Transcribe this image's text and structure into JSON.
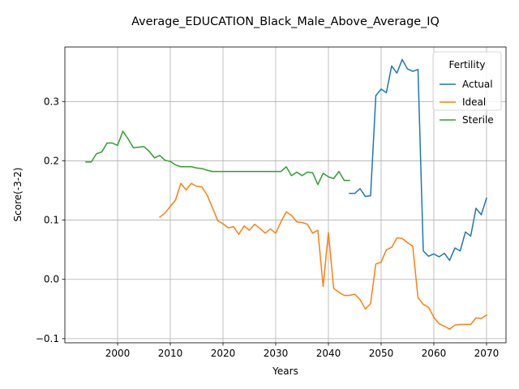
{
  "chart_data": {
    "type": "line",
    "title": "Average_EDUCATION_Black_Male_Above_Average_IQ",
    "xlabel": "Years",
    "ylabel": "Score(-3-2)",
    "xlim": [
      1990,
      2073.7
    ],
    "ylim": [
      -0.107,
      0.392
    ],
    "xticks": [
      2000,
      2010,
      2020,
      2030,
      2040,
      2050,
      2060,
      2070
    ],
    "yticks": [
      -0.1,
      0.0,
      0.1,
      0.2,
      0.3
    ],
    "ytick_labels": [
      "−0.1",
      "0.0",
      "0.1",
      "0.2",
      "0.3"
    ],
    "grid": true,
    "legend": {
      "title": "Fertility",
      "position": "top-right"
    },
    "series": [
      {
        "name": "Actual",
        "color": "#1f77b4",
        "x": [
          2044,
          2045,
          2046,
          2047,
          2048,
          2049,
          2050,
          2051,
          2052,
          2053,
          2054,
          2055,
          2056,
          2057,
          2058,
          2059,
          2060,
          2061,
          2062,
          2063,
          2064,
          2065,
          2066,
          2067,
          2068,
          2069,
          2070
        ],
        "y": [
          0.145,
          0.145,
          0.153,
          0.14,
          0.141,
          0.31,
          0.321,
          0.315,
          0.36,
          0.348,
          0.371,
          0.355,
          0.351,
          0.354,
          0.048,
          0.039,
          0.043,
          0.038,
          0.044,
          0.032,
          0.053,
          0.048,
          0.08,
          0.073,
          0.12,
          0.109,
          0.137
        ]
      },
      {
        "name": "Ideal",
        "color": "#ff7f0e",
        "x": [
          2008,
          2009,
          2010,
          2011,
          2012,
          2013,
          2014,
          2015,
          2016,
          2017,
          2018,
          2019,
          2020,
          2021,
          2022,
          2023,
          2024,
          2025,
          2026,
          2027,
          2028,
          2029,
          2030,
          2031,
          2032,
          2033,
          2034,
          2035,
          2036,
          2037,
          2038,
          2039,
          2040,
          2041,
          2042,
          2043,
          2044,
          2045,
          2046,
          2047,
          2048,
          2049,
          2050,
          2051,
          2052,
          2053,
          2054,
          2055,
          2056,
          2057,
          2058,
          2059,
          2060,
          2061,
          2062,
          2063,
          2064,
          2065,
          2066,
          2067,
          2068,
          2069,
          2070
        ],
        "y": [
          0.105,
          0.112,
          0.123,
          0.134,
          0.162,
          0.151,
          0.162,
          0.157,
          0.156,
          0.142,
          0.121,
          0.099,
          0.094,
          0.087,
          0.089,
          0.076,
          0.09,
          0.083,
          0.093,
          0.086,
          0.078,
          0.085,
          0.078,
          0.097,
          0.114,
          0.108,
          0.097,
          0.096,
          0.093,
          0.078,
          0.083,
          -0.012,
          0.079,
          -0.015,
          -0.022,
          -0.027,
          -0.027,
          -0.025,
          -0.034,
          -0.05,
          -0.041,
          0.026,
          0.029,
          0.05,
          0.054,
          0.07,
          0.069,
          0.062,
          0.056,
          -0.031,
          -0.042,
          -0.047,
          -0.064,
          -0.075,
          -0.079,
          -0.084,
          -0.077,
          -0.076,
          -0.076,
          -0.076,
          -0.065,
          -0.066,
          -0.06
        ]
      },
      {
        "name": "Sterile",
        "color": "#2ca02c",
        "x": [
          1994,
          1995,
          1996,
          1997,
          1998,
          1999,
          2000,
          2001,
          2002,
          2003,
          2004,
          2005,
          2006,
          2007,
          2008,
          2009,
          2010,
          2011,
          2012,
          2013,
          2014,
          2015,
          2016,
          2017,
          2018,
          2019,
          2020,
          2021,
          2022,
          2023,
          2024,
          2025,
          2026,
          2027,
          2028,
          2029,
          2030,
          2031,
          2032,
          2033,
          2034,
          2035,
          2036,
          2037,
          2038,
          2039,
          2040,
          2041,
          2042,
          2043,
          2044
        ],
        "y": [
          0.198,
          0.198,
          0.212,
          0.215,
          0.23,
          0.23,
          0.226,
          0.25,
          0.237,
          0.222,
          0.223,
          0.224,
          0.216,
          0.205,
          0.209,
          0.201,
          0.199,
          0.193,
          0.19,
          0.19,
          0.19,
          0.188,
          0.187,
          0.184,
          0.182,
          0.182,
          0.182,
          0.182,
          0.182,
          0.182,
          0.182,
          0.182,
          0.182,
          0.182,
          0.182,
          0.182,
          0.182,
          0.182,
          0.19,
          0.175,
          0.181,
          0.175,
          0.181,
          0.18,
          0.16,
          0.179,
          0.173,
          0.17,
          0.182,
          0.167,
          0.167
        ]
      }
    ]
  }
}
